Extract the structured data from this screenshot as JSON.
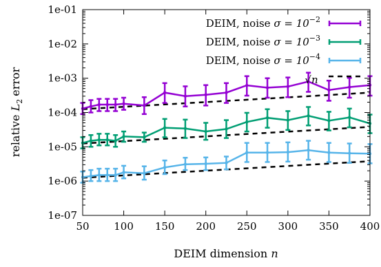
{
  "chart_data": {
    "type": "line",
    "xlabel": "DEIM dimension",
    "xlabel_var": "n",
    "ylabel": "relative",
    "ylabel_sym": "L",
    "ylabel_sub": "2",
    "ylabel_tail": "error",
    "xlim": [
      50,
      400
    ],
    "ylim": [
      1e-07,
      0.1
    ],
    "yscale": "log",
    "grid": false,
    "legend_position": "top-right",
    "x_ticks": [
      {
        "value": 50,
        "label": "50"
      },
      {
        "value": 100,
        "label": "100"
      },
      {
        "value": 150,
        "label": "150"
      },
      {
        "value": 200,
        "label": "200"
      },
      {
        "value": 250,
        "label": "250"
      },
      {
        "value": 300,
        "label": "300"
      },
      {
        "value": 350,
        "label": "350"
      },
      {
        "value": 400,
        "label": "400"
      }
    ],
    "y_ticks": [
      {
        "value": 1e-07,
        "label": "1e-07"
      },
      {
        "value": 1e-06,
        "label": "1e-06"
      },
      {
        "value": 1e-05,
        "label": "1e-05"
      },
      {
        "value": 0.0001,
        "label": "1e-04"
      },
      {
        "value": 0.001,
        "label": "1e-03"
      },
      {
        "value": 0.01,
        "label": "1e-02"
      },
      {
        "value": 0.1,
        "label": "1e-01"
      }
    ],
    "series": [
      {
        "name": "DEIM, noise",
        "sigma_label": "σ = 10",
        "sigma_exp": "−2",
        "color": "#9400d3",
        "x": [
          50,
          60,
          70,
          80,
          90,
          100,
          125,
          150,
          175,
          200,
          225,
          250,
          275,
          300,
          325,
          350,
          375,
          400
        ],
        "y": [
          0.00013,
          0.00015,
          0.00017,
          0.00017,
          0.00017,
          0.00018,
          0.00016,
          0.00038,
          0.0003,
          0.00033,
          0.00038,
          0.00062,
          0.00053,
          0.00057,
          0.0008,
          0.00045,
          0.00055,
          0.00063
        ],
        "err_low": [
          9e-05,
          0.0001,
          0.00011,
          0.00011,
          0.00011,
          0.00012,
          9e-05,
          0.00019,
          0.00015,
          0.00016,
          0.00019,
          0.00031,
          0.00027,
          0.00028,
          0.0004,
          0.00022,
          0.00027,
          0.00031
        ],
        "err_high": [
          0.00019,
          0.00023,
          0.00025,
          0.00025,
          0.00025,
          0.00027,
          0.00028,
          0.00072,
          0.00058,
          0.00063,
          0.00072,
          0.00115,
          0.001,
          0.00105,
          0.00145,
          0.00085,
          0.00102,
          0.00115
        ]
      },
      {
        "name": "DEIM, noise",
        "sigma_label": "σ = 10",
        "sigma_exp": "−3",
        "color": "#009e73",
        "x": [
          50,
          60,
          70,
          80,
          90,
          100,
          125,
          150,
          175,
          200,
          225,
          250,
          275,
          300,
          325,
          350,
          375,
          400
        ],
        "y": [
          1.3e-05,
          1.5e-05,
          1.6e-05,
          1.6e-05,
          1.5e-05,
          2e-05,
          1.9e-05,
          3.6e-05,
          3.4e-05,
          2.8e-05,
          3.3e-05,
          5.3e-05,
          7e-05,
          6e-05,
          8e-05,
          5.8e-05,
          7.2e-05,
          4.8e-05
        ],
        "err_low": [
          9e-06,
          1e-05,
          1.1e-05,
          1.1e-05,
          1e-05,
          1.4e-05,
          1.4e-05,
          1.9e-05,
          1.8e-05,
          1.6e-05,
          1.8e-05,
          2.8e-05,
          3.6e-05,
          3.1e-05,
          4.2e-05,
          3e-05,
          3.7e-05,
          2.5e-05
        ],
        "err_high": [
          1.9e-05,
          2.2e-05,
          2.4e-05,
          2.4e-05,
          2.2e-05,
          2.8e-05,
          2.6e-05,
          6.5e-05,
          6.2e-05,
          5e-05,
          6e-05,
          9.8e-05,
          0.000125,
          0.00011,
          0.000145,
          0.000105,
          0.00013,
          8.7e-05
        ]
      },
      {
        "name": "DEIM, noise",
        "sigma_label": "σ = 10",
        "sigma_exp": "−4",
        "color": "#56b4e9",
        "x": [
          50,
          60,
          70,
          80,
          90,
          100,
          125,
          150,
          175,
          200,
          225,
          250,
          275,
          300,
          325,
          350,
          375,
          400
        ],
        "y": [
          1.3e-06,
          1.4e-06,
          1.5e-06,
          1.5e-06,
          1.5e-06,
          1.8e-06,
          1.7e-06,
          2.5e-06,
          3.1e-06,
          3.2e-06,
          3.4e-06,
          6.8e-06,
          6.8e-06,
          7e-06,
          8e-06,
          6.8e-06,
          6.5e-06,
          6.3e-06
        ],
        "err_low": [
          9e-07,
          1e-06,
          1e-06,
          1e-06,
          1e-06,
          1.2e-06,
          1.1e-06,
          1.6e-06,
          2.1e-06,
          2.1e-06,
          2.2e-06,
          3.6e-06,
          3.6e-06,
          3.7e-06,
          4.2e-06,
          3.6e-06,
          3.4e-06,
          3.3e-06
        ],
        "err_high": [
          1.9e-06,
          2.1e-06,
          2.3e-06,
          2.3e-06,
          2.3e-06,
          2.8e-06,
          2.7e-06,
          4e-06,
          4.8e-06,
          4.9e-06,
          5.2e-06,
          1.3e-05,
          1.3e-05,
          1.35e-05,
          1.5e-05,
          1.3e-05,
          1.25e-05,
          1.2e-05
        ]
      }
    ],
    "reference": {
      "label": "√n",
      "color": "#000000",
      "lines": [
        {
          "x0": 50,
          "y0": 0.000125,
          "x1": 400,
          "y1": 0.00038
        },
        {
          "x0": 50,
          "y0": 1.25e-05,
          "x1": 400,
          "y1": 3.8e-05
        },
        {
          "x0": 50,
          "y0": 1.25e-06,
          "x1": 400,
          "y1": 3.8e-06
        }
      ]
    }
  }
}
